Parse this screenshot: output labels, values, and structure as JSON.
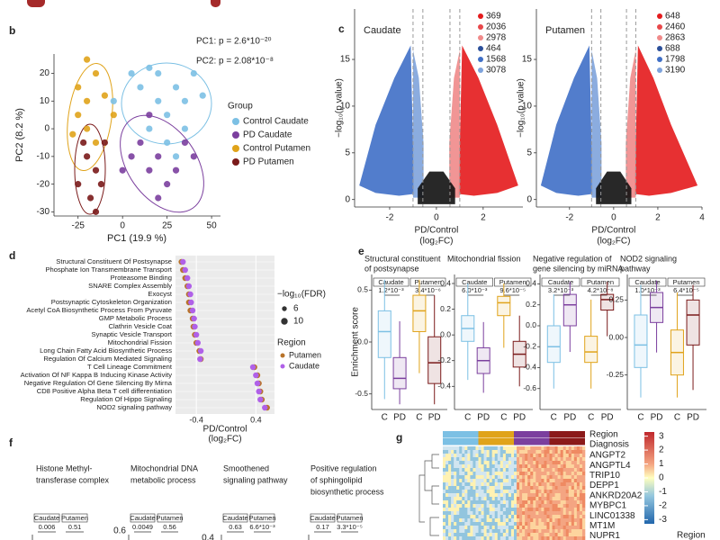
{
  "panel_labels": [
    "b",
    "c",
    "d",
    "e",
    "f",
    "g"
  ],
  "pca": {
    "type": "scatter",
    "annotations": [
      "PC1: p = 2.6*10⁻²⁰",
      "PC2: p = 2.08*10⁻⁸"
    ],
    "xlabel": "PC1 (19.9 %)",
    "ylabel": "PC2 (8.2 %)",
    "xlim": [
      -38.5,
      55
    ],
    "ylim": [
      -31.5,
      27
    ],
    "xticks": [
      -25,
      0,
      25,
      50
    ],
    "yticks": [
      -30,
      -20,
      -10,
      0,
      10,
      20
    ],
    "legend_title": "Group",
    "series": [
      {
        "name": "Control Caudate",
        "color": "#7cc0e4",
        "x": [
          5,
          10,
          15,
          20,
          25,
          30,
          35,
          40,
          45,
          15,
          25,
          35,
          -5,
          20,
          30
        ],
        "y": [
          20,
          15,
          22,
          10,
          5,
          15,
          10,
          20,
          12,
          0,
          -5,
          0,
          10,
          20,
          -10
        ]
      },
      {
        "name": "PD Caudate",
        "color": "#7b3f9e",
        "x": [
          10,
          15,
          20,
          25,
          30,
          35,
          5,
          15,
          20,
          40,
          0
        ],
        "y": [
          -5,
          -15,
          -10,
          -20,
          -15,
          -5,
          -10,
          5,
          -25,
          -10,
          -15
        ]
      },
      {
        "name": "Control Putamen",
        "color": "#e0a31a",
        "x": [
          -25,
          -20,
          -15,
          -20,
          -25,
          -10,
          -15,
          -5,
          -20,
          -28
        ],
        "y": [
          15,
          10,
          20,
          0,
          5,
          12,
          -5,
          5,
          25,
          -2
        ]
      },
      {
        "name": "PD Putamen",
        "color": "#7a1a1a",
        "x": [
          -20,
          -15,
          -25,
          -10,
          -18,
          -22,
          -12,
          -15
        ],
        "y": [
          -10,
          -15,
          -20,
          -5,
          -25,
          -5,
          -20,
          -30
        ]
      }
    ]
  },
  "volcano": {
    "type": "scatter",
    "ylabel": "−log₁₀(p value)",
    "xlabel": [
      "PD/Control",
      "(log₂FC)"
    ],
    "count_colors": [
      "#e41a1c",
      "#e8474a",
      "#f08a8a",
      "#2b4f9a",
      "#3f6fc6",
      "#7ea3dc"
    ],
    "panels": [
      {
        "title": "Caudate",
        "xlim": [
          -3.5,
          3.7
        ],
        "ylim": [
          -0.8,
          20.4
        ],
        "xticks": [
          -2,
          0,
          2
        ],
        "yticks": [
          0,
          5,
          10,
          15
        ],
        "counts": [
          369,
          2036,
          2978,
          464,
          1568,
          3078
        ]
      },
      {
        "title": "Putamen",
        "xlim": [
          -3.5,
          4
        ],
        "ylim": [
          -0.8,
          20.4
        ],
        "xticks": [
          -2,
          0,
          2,
          4
        ],
        "yticks": [
          0,
          5,
          10,
          15
        ],
        "counts": [
          648,
          2460,
          2863,
          688,
          1798,
          3190
        ]
      }
    ]
  },
  "dotplot": {
    "type": "dot",
    "terms": [
      "Structural Constituent Of Postsynapse",
      "Phosphate Ion Transmembrane Transport",
      "Proteasome Binding",
      "SNARE Complex Assembly",
      "Exocyst",
      "Postsynaptic Cytoskeleton Organization",
      "Acetyl CoA Biosynthetic Process From Pyruvate",
      "GMP Metabolic Process",
      "Clathrin Vesicle Coat",
      "Synaptic Vesicle Transport",
      "Mitochondrial Fission",
      "Long Chain Fatty Acid Biosynthetic Process",
      "Regulation Of Calcium Mediated Signaling",
      "T Cell Lineage Commitment",
      "Activation Of NF Kappa B Inducing Kinase Activity",
      "Negative Regulation Of Gene Silencing By Mirna",
      "CD8 Positive Alpha Beta T cell differentiation",
      "Regulation Of Hippo Signaling",
      "NOD2 signaling pathway"
    ],
    "series": [
      {
        "name": "Putamen",
        "color": "#b8732a",
        "values": [
          -0.6,
          -0.58,
          -0.55,
          -0.52,
          -0.5,
          -0.5,
          -0.48,
          -0.45,
          -0.44,
          -0.42,
          -0.4,
          -0.36,
          -0.34,
          0.38,
          0.42,
          0.44,
          0.46,
          0.48,
          0.55
        ]
      },
      {
        "name": "Caudate",
        "color": "#b061e8",
        "values": [
          -0.58,
          -0.55,
          -0.52,
          -0.5,
          -0.48,
          -0.47,
          -0.45,
          -0.43,
          -0.42,
          -0.4,
          -0.38,
          -0.34,
          -0.35,
          0.36,
          0.4,
          0.42,
          0.44,
          0.46,
          0.52
        ]
      }
    ],
    "xlim": [
      -0.68,
      0.65
    ],
    "xticks": [
      -0.4,
      0.4
    ],
    "xlabel": [
      "PD/Control",
      "(log₂FC)"
    ],
    "size_title": "−log₁₀(FDR)",
    "sizes": [
      6,
      10
    ],
    "legend_title": "Region"
  },
  "enrichment": {
    "type": "box",
    "ylabel": "Enrichment score",
    "categories": [
      "C",
      "PD"
    ],
    "regions": [
      "Caudate",
      "Putamen"
    ],
    "colors": [
      "#7cc0e4",
      "#7b3f9e",
      "#e0a31a",
      "#7a1a1a"
    ],
    "panels": [
      {
        "title": [
          "Structural constituent",
          "of postsynapse"
        ],
        "ylim": [
          -0.65,
          0.65
        ],
        "yticks": [
          0.5,
          {
            "value": 0,
            "label": "0.0"
          },
          -0.5
        ],
        "pvalues": [
          "1.2*10⁻³",
          "3.4*10⁻⁶"
        ],
        "boxes": [
          [
            -0.55,
            -0.15,
            0.1,
            0.3,
            0.6
          ],
          [
            -0.6,
            -0.45,
            -0.35,
            -0.15,
            0.2
          ],
          [
            -0.3,
            0.1,
            0.3,
            0.45,
            0.6
          ],
          [
            -0.6,
            -0.4,
            -0.2,
            0.05,
            0.45
          ]
        ]
      },
      {
        "title": [
          "Mitochondrial fission"
        ],
        "ylim": [
          -0.58,
          0.47
        ],
        "yticks": [
          0.4,
          0.2,
          {
            "value": 0,
            "label": "0.0"
          },
          -0.2,
          -0.4
        ],
        "pvalues": [
          "6.0*10⁻³",
          "9.6*10⁻⁵"
        ],
        "boxes": [
          [
            -0.35,
            -0.05,
            0.05,
            0.15,
            0.4
          ],
          [
            -0.45,
            -0.3,
            -0.2,
            -0.1,
            0.1
          ],
          [
            -0.1,
            0.15,
            0.25,
            0.3,
            0.4
          ],
          [
            -0.4,
            -0.25,
            -0.15,
            -0.05,
            0.15
          ]
        ]
      },
      {
        "title": [
          "Negative regulation of",
          "gene silencing by miRNA"
        ],
        "ylim": [
          -0.8,
          0.49
        ],
        "yticks": [
          0.4,
          0.2,
          {
            "value": 0,
            "label": "0.0"
          },
          -0.2,
          -0.4,
          -0.6
        ],
        "pvalues": [
          "3.2*10⁻³",
          "4.2*10⁻⁸"
        ],
        "boxes": [
          [
            -0.6,
            -0.35,
            -0.2,
            0.0,
            0.3
          ],
          [
            -0.25,
            0.0,
            0.2,
            0.3,
            0.42
          ],
          [
            -0.6,
            -0.35,
            -0.25,
            -0.1,
            0.25
          ],
          [
            -0.1,
            0.15,
            0.25,
            0.3,
            0.42
          ]
        ]
      },
      {
        "title": [
          "NOD2 signaling",
          "pathway"
        ],
        "ylim": [
          -0.48,
          0.42
        ],
        "yticks": [
          0.25,
          {
            "value": 0,
            "label": "0.00"
          },
          -0.25
        ],
        "pvalues": [
          "1.0*10⁻³",
          "6.4*10⁻⁵"
        ],
        "boxes": [
          [
            -0.4,
            -0.2,
            -0.05,
            0.15,
            0.35
          ],
          [
            -0.1,
            0.1,
            0.2,
            0.3,
            0.38
          ],
          [
            -0.4,
            -0.25,
            -0.1,
            0.05,
            0.3
          ],
          [
            -0.35,
            -0.05,
            0.15,
            0.25,
            0.35
          ]
        ]
      }
    ]
  },
  "f": {
    "titles": [
      [
        "Histone Methyl-",
        "transferase complex"
      ],
      [
        "Mitochondrial DNA",
        "metabolic process"
      ],
      [
        "Smoothened",
        "signaling pathway"
      ],
      [
        "Positive regulation",
        "of sphingolipid",
        "biosynthetic process"
      ]
    ],
    "pvalues": [
      [
        "0.006",
        "0.51"
      ],
      [
        "0.0049",
        "0.56"
      ],
      [
        "0.63",
        "6.6*10⁻³"
      ],
      [
        "0.17",
        "3.3*10⁻⁵"
      ]
    ],
    "yticks": [
      0.6,
      0.4
    ]
  },
  "heatmap": {
    "tracks": [
      "Region",
      "Diagnosis"
    ],
    "track_colors": [
      "#7cc0e4",
      "#e0a31a",
      "#7b3f9e",
      "#8b1a1a"
    ],
    "genes": [
      "ANGPT2",
      "ANGPTL4",
      "TRIP10",
      "DEPP1",
      "ANKRD20A2",
      "MYBPC1",
      "LINC01338",
      "MT1M",
      "NUPR1"
    ],
    "colorbar_lim": [
      -3.3,
      3.3
    ],
    "colorbar_ticks": [
      3,
      2,
      1,
      0,
      -1,
      -2,
      -3
    ],
    "legend_title": "Region"
  }
}
